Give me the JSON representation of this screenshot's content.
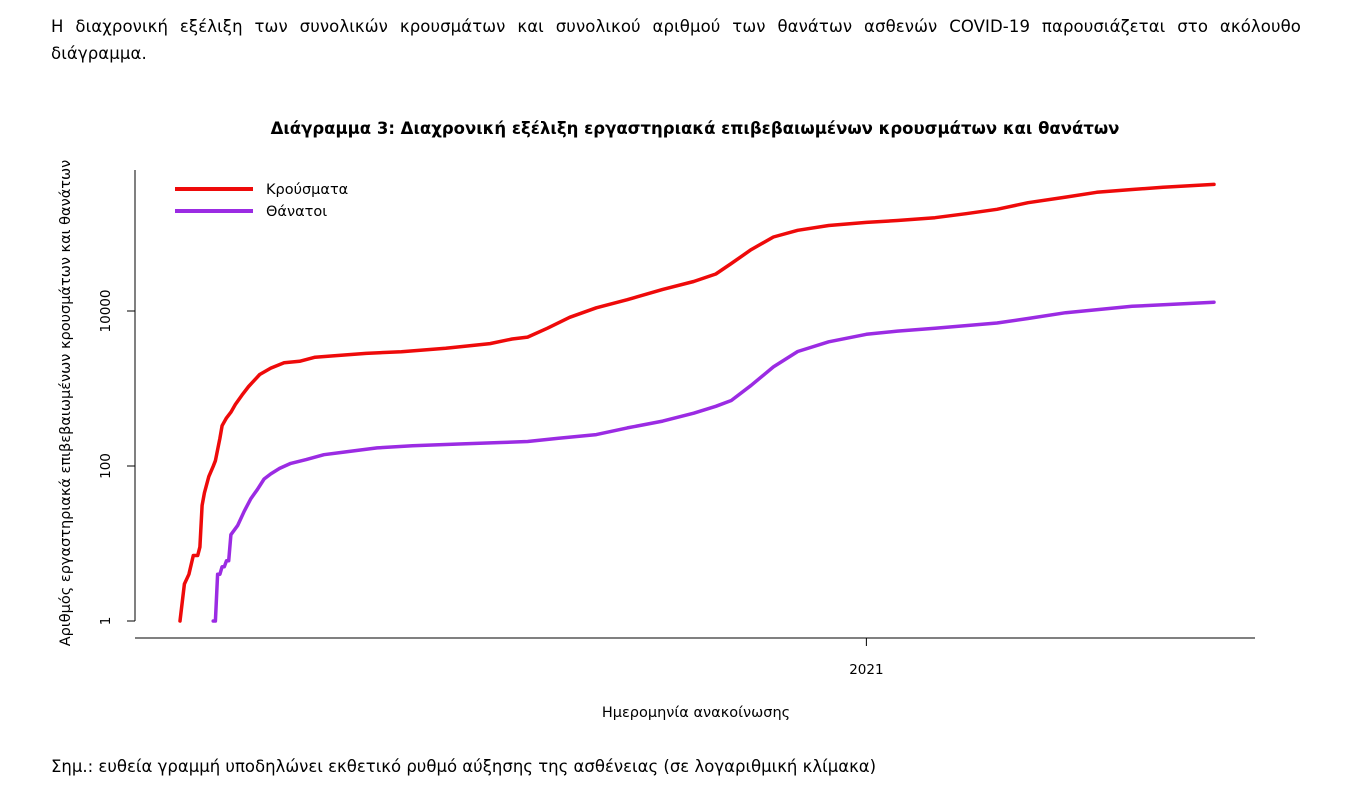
{
  "text": {
    "intro": "Η διαχρονική εξέλιξη των συνολικών κρουσμάτων και συνολικού αριθμού των θανάτων ασθενών COVID-19 παρουσιάζεται στο ακόλουθο διάγραμμα.",
    "note": "Σημ.: ευθεία γραμμή υποδηλώνει εκθετικό ρυθμό αύξησης της ασθένειας (σε λογαριθμική κλίμακα)"
  },
  "colors": {
    "cases": "#ee0a0a",
    "deaths": "#9b2be3",
    "axis": "#000000"
  },
  "chart_data": {
    "type": "line",
    "title": "Διάγραμμα 3: Διαχρονική εξέλιξη εργαστηριακά επιβεβαιωμένων κρουσμάτων και θανάτων",
    "xlabel": "Ημερομηνία ανακοίνωσης",
    "ylabel": "Αριθμός εργαστηριακά επιβεβαιωμένων κρουσμάτων και θανάτων",
    "y_scale": "log",
    "ylim": [
      1,
      1000000
    ],
    "y_ticks": [
      {
        "value": 1,
        "label": "1"
      },
      {
        "value": 100,
        "label": "100"
      },
      {
        "value": 10000,
        "label": "10000"
      }
    ],
    "x_range": [
      "2020-02-26",
      "2021-06-07"
    ],
    "x_ticks": [
      {
        "value": "2021-01-01",
        "label": "2021"
      }
    ],
    "legend": "top-left",
    "series": [
      {
        "name": "Κρούσματα",
        "color": "#ee0a0a",
        "points": [
          [
            "2020-02-26",
            1
          ],
          [
            "2020-02-28",
            3
          ],
          [
            "2020-03-01",
            4
          ],
          [
            "2020-03-03",
            7
          ],
          [
            "2020-03-05",
            7
          ],
          [
            "2020-03-06",
            9
          ],
          [
            "2020-03-07",
            31
          ],
          [
            "2020-03-08",
            45
          ],
          [
            "2020-03-10",
            73
          ],
          [
            "2020-03-12",
            99
          ],
          [
            "2020-03-13",
            117
          ],
          [
            "2020-03-15",
            228
          ],
          [
            "2020-03-16",
            331
          ],
          [
            "2020-03-18",
            418
          ],
          [
            "2020-03-20",
            495
          ],
          [
            "2020-03-22",
            624
          ],
          [
            "2020-03-25",
            821
          ],
          [
            "2020-03-28",
            1061
          ],
          [
            "2020-04-02",
            1514
          ],
          [
            "2020-04-07",
            1832
          ],
          [
            "2020-04-13",
            2145
          ],
          [
            "2020-04-20",
            2245
          ],
          [
            "2020-04-27",
            2534
          ],
          [
            "2020-05-05",
            2632
          ],
          [
            "2020-05-20",
            2840
          ],
          [
            "2020-06-05",
            2980
          ],
          [
            "2020-06-25",
            3300
          ],
          [
            "2020-07-15",
            3800
          ],
          [
            "2020-07-25",
            4350
          ],
          [
            "2020-08-01",
            4600
          ],
          [
            "2020-08-10",
            6000
          ],
          [
            "2020-08-20",
            8300
          ],
          [
            "2020-09-01",
            11000
          ],
          [
            "2020-09-15",
            14000
          ],
          [
            "2020-10-01",
            19000
          ],
          [
            "2020-10-15",
            24000
          ],
          [
            "2020-10-25",
            30000
          ],
          [
            "2020-11-01",
            41000
          ],
          [
            "2020-11-10",
            62000
          ],
          [
            "2020-11-20",
            90000
          ],
          [
            "2020-12-01",
            110000
          ],
          [
            "2020-12-15",
            127000
          ],
          [
            "2021-01-01",
            139000
          ],
          [
            "2021-01-15",
            147000
          ],
          [
            "2021-02-01",
            160000
          ],
          [
            "2021-02-15",
            180000
          ],
          [
            "2021-03-01",
            205000
          ],
          [
            "2021-03-15",
            250000
          ],
          [
            "2021-04-01",
            295000
          ],
          [
            "2021-04-15",
            340000
          ],
          [
            "2021-05-01",
            370000
          ],
          [
            "2021-05-15",
            395000
          ],
          [
            "2021-06-07",
            430000
          ]
        ]
      },
      {
        "name": "Θάνατοι",
        "color": "#9b2be3",
        "points": [
          [
            "2020-03-12",
            1
          ],
          [
            "2020-03-13",
            1
          ],
          [
            "2020-03-14",
            4
          ],
          [
            "2020-03-15",
            4
          ],
          [
            "2020-03-16",
            5
          ],
          [
            "2020-03-17",
            5
          ],
          [
            "2020-03-18",
            6
          ],
          [
            "2020-03-19",
            6
          ],
          [
            "2020-03-20",
            13
          ],
          [
            "2020-03-23",
            17
          ],
          [
            "2020-03-26",
            26
          ],
          [
            "2020-03-29",
            38
          ],
          [
            "2020-04-01",
            50
          ],
          [
            "2020-04-04",
            68
          ],
          [
            "2020-04-07",
            79
          ],
          [
            "2020-04-11",
            93
          ],
          [
            "2020-04-16",
            108
          ],
          [
            "2020-04-23",
            121
          ],
          [
            "2020-05-01",
            140
          ],
          [
            "2020-05-10",
            151
          ],
          [
            "2020-05-25",
            171
          ],
          [
            "2020-06-10",
            183
          ],
          [
            "2020-07-01",
            192
          ],
          [
            "2020-07-20",
            201
          ],
          [
            "2020-08-01",
            207
          ],
          [
            "2020-08-15",
            228
          ],
          [
            "2020-09-01",
            254
          ],
          [
            "2020-09-15",
            310
          ],
          [
            "2020-10-01",
            380
          ],
          [
            "2020-10-15",
            480
          ],
          [
            "2020-10-25",
            590
          ],
          [
            "2020-11-01",
            700
          ],
          [
            "2020-11-10",
            1100
          ],
          [
            "2020-11-20",
            1900
          ],
          [
            "2020-12-01",
            3000
          ],
          [
            "2020-12-15",
            4000
          ],
          [
            "2021-01-01",
            5000
          ],
          [
            "2021-01-15",
            5500
          ],
          [
            "2021-02-01",
            6000
          ],
          [
            "2021-03-01",
            7000
          ],
          [
            "2021-03-15",
            8000
          ],
          [
            "2021-04-01",
            9500
          ],
          [
            "2021-05-01",
            11500
          ],
          [
            "2021-06-07",
            13000
          ]
        ]
      }
    ]
  }
}
